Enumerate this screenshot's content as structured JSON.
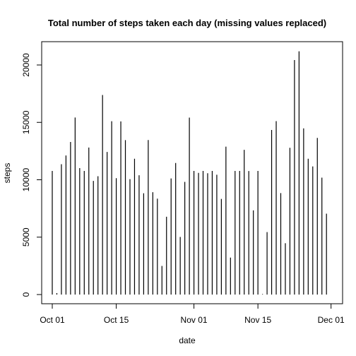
{
  "chart_data": {
    "type": "bar",
    "style": "histogram-lines",
    "title": "Total number of steps taken each day (missing values replaced)",
    "xlabel": "date",
    "ylabel": "steps",
    "x_start": "2012-10-01",
    "x_ticks": [
      {
        "date": "2012-10-01",
        "label": "Oct 01"
      },
      {
        "date": "2012-10-15",
        "label": "Oct 15"
      },
      {
        "date": "2012-11-01",
        "label": "Nov 01"
      },
      {
        "date": "2012-11-15",
        "label": "Nov 15"
      },
      {
        "date": "2012-12-01",
        "label": "Dec 01"
      }
    ],
    "y_ticks": [
      0,
      5000,
      10000,
      15000,
      20000
    ],
    "ylim": [
      0,
      21500
    ],
    "grid": false,
    "legend": "none",
    "values": [
      10766,
      126,
      11352,
      12116,
      13294,
      15420,
      11015,
      10766,
      12811,
      9900,
      10304,
      17382,
      12426,
      15098,
      10139,
      15084,
      13452,
      10056,
      11829,
      10395,
      8821,
      13460,
      8918,
      8355,
      2492,
      6778,
      10119,
      11458,
      5018,
      9819,
      15414,
      10766,
      10600,
      10766,
      10571,
      10766,
      10439,
      8334,
      12883,
      3219,
      10766,
      10766,
      12608,
      10765,
      7336,
      10766,
      41,
      5441,
      14339,
      15110,
      8841,
      4472,
      12787,
      20427,
      21194,
      14478,
      11834,
      11162,
      13646,
      10183,
      7047
    ],
    "bar_color": "#000000"
  }
}
